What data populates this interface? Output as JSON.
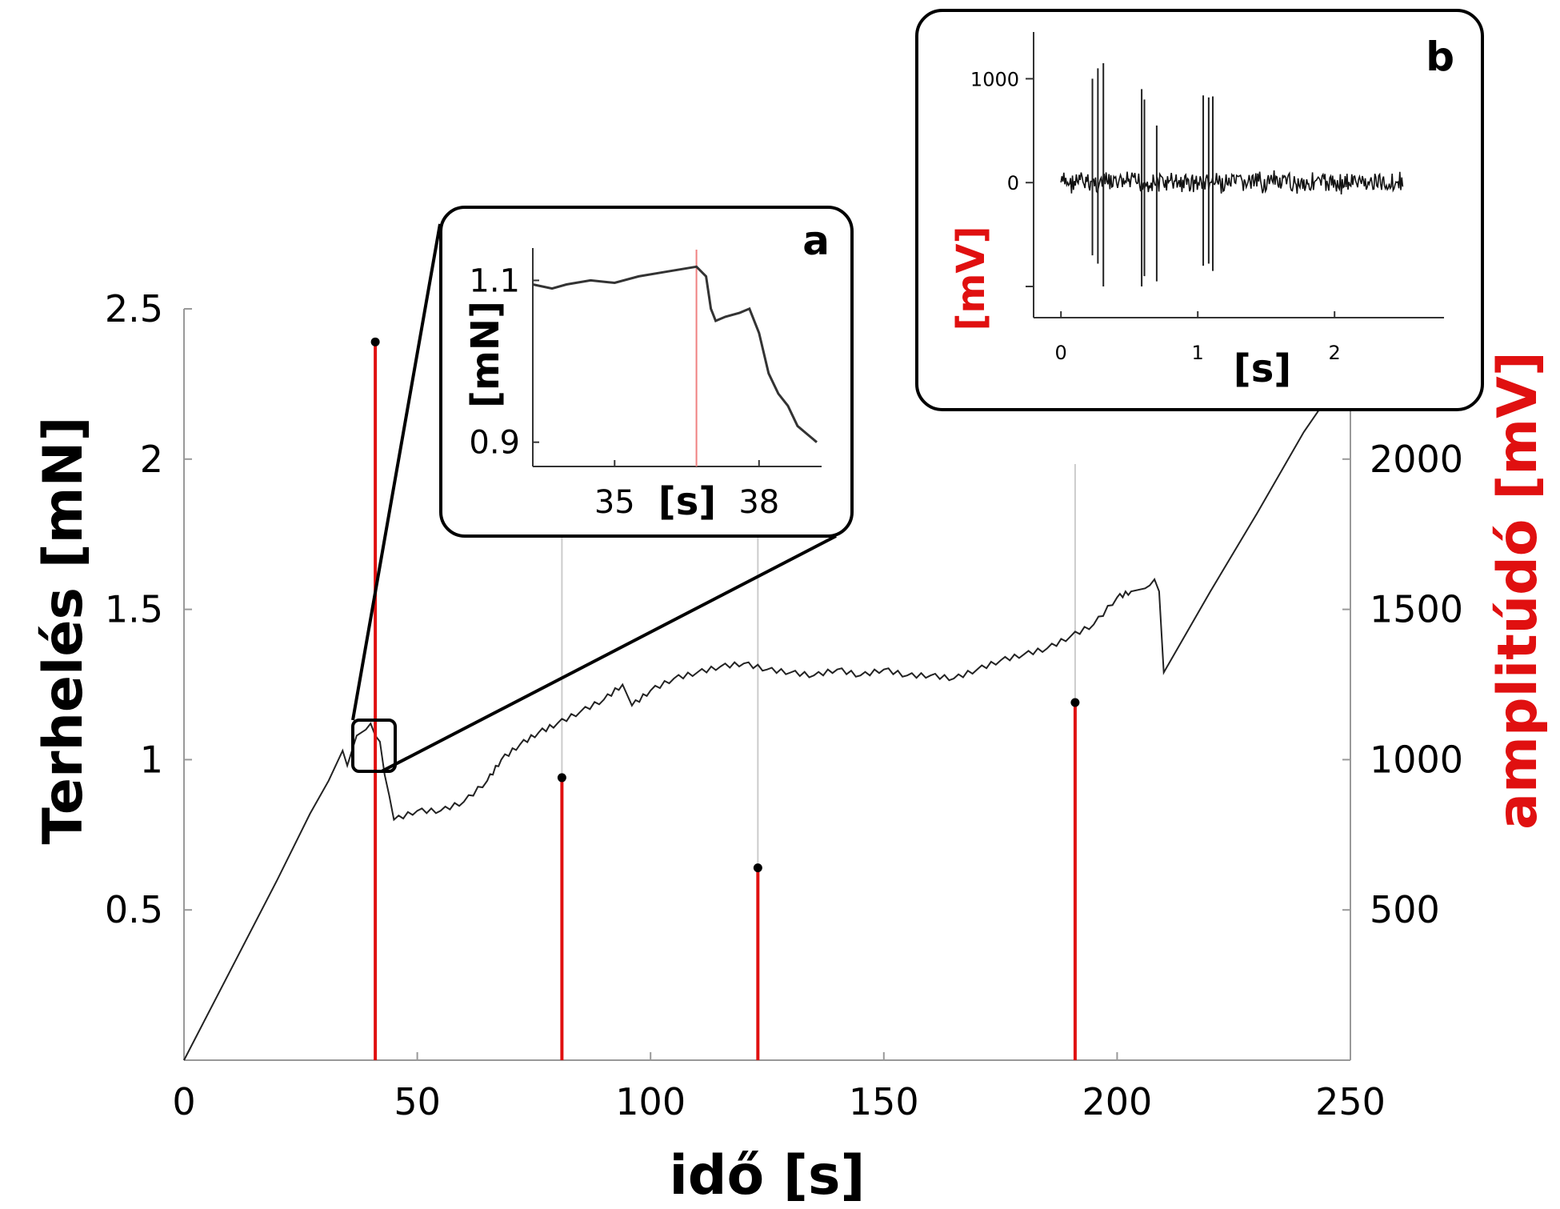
{
  "chart_data": [
    {
      "id": "main",
      "type": "line",
      "xlabel": "idő [s]",
      "ylabel_left": "Terhelés [mN]",
      "ylabel_right": "amplitúdó [mV]",
      "xlim": [
        0,
        250
      ],
      "ylim_left": [
        0,
        2.5
      ],
      "ylim_right": [
        0,
        2500
      ],
      "x_ticks": [
        0,
        50,
        100,
        150,
        200,
        250
      ],
      "y_ticks_left": [
        0.5,
        1,
        1.5,
        2,
        2.5
      ],
      "y_ticks_right": [
        500,
        1000,
        1500,
        2000
      ],
      "grid": false,
      "colors": {
        "load": "#222222",
        "stem": "#e01010",
        "marker": "#000000",
        "guide": "#cccccc"
      },
      "series": [
        {
          "axis": "left",
          "style": "line",
          "x": [
            0,
            10,
            20,
            27,
            31,
            34,
            35,
            37,
            39,
            40,
            41,
            42,
            43,
            44,
            45,
            50,
            55,
            60,
            65,
            68,
            72,
            76,
            80,
            85,
            90,
            94,
            96,
            100,
            105,
            110,
            115,
            120,
            125,
            130,
            135,
            140,
            145,
            150,
            155,
            160,
            165,
            170,
            175,
            180,
            185,
            190,
            195,
            200,
            203,
            206,
            207,
            208,
            209,
            210,
            220,
            230,
            240,
            248
          ],
          "y": [
            0,
            0.3,
            0.6,
            0.82,
            0.93,
            1.03,
            0.98,
            1.08,
            1.1,
            1.12,
            1.08,
            1.06,
            0.95,
            0.88,
            0.8,
            0.83,
            0.83,
            0.86,
            0.93,
            1.0,
            1.05,
            1.09,
            1.12,
            1.16,
            1.2,
            1.25,
            1.18,
            1.23,
            1.27,
            1.29,
            1.31,
            1.32,
            1.3,
            1.29,
            1.28,
            1.3,
            1.28,
            1.3,
            1.28,
            1.28,
            1.27,
            1.3,
            1.33,
            1.35,
            1.37,
            1.41,
            1.45,
            1.54,
            1.56,
            1.57,
            1.58,
            1.6,
            1.56,
            1.29,
            1.56,
            1.82,
            2.09,
            2.27
          ]
        },
        {
          "axis": "right",
          "style": "stem",
          "x": [
            41,
            81,
            123,
            191
          ],
          "y": [
            2390,
            940,
            640,
            1190
          ]
        }
      ]
    },
    {
      "id": "inset-a",
      "panel_label": "a",
      "type": "line",
      "xlabel": "[s]",
      "ylabel": "[mN]",
      "xlim": [
        33.3,
        39.3
      ],
      "ylim": [
        0.87,
        1.14
      ],
      "x_ticks": [
        35,
        38
      ],
      "y_ticks": [
        0.9,
        1.1
      ],
      "marker_x": 36.7,
      "series": [
        {
          "x": [
            33.3,
            33.7,
            34.0,
            34.5,
            35.0,
            35.5,
            36.0,
            36.5,
            36.7,
            36.9,
            37.0,
            37.1,
            37.3,
            37.6,
            37.8,
            38.0,
            38.2,
            38.4,
            38.6,
            38.8,
            39.0,
            39.2
          ],
          "y": [
            1.095,
            1.09,
            1.095,
            1.1,
            1.097,
            1.105,
            1.11,
            1.115,
            1.117,
            1.105,
            1.065,
            1.05,
            1.055,
            1.06,
            1.065,
            1.035,
            0.985,
            0.96,
            0.945,
            0.92,
            0.91,
            0.9
          ]
        }
      ]
    },
    {
      "id": "inset-b",
      "panel_label": "b",
      "type": "line",
      "xlabel": "[s]",
      "ylabel": "[mV]",
      "xlim": [
        -0.2,
        2.8
      ],
      "ylim": [
        -1300,
        1450
      ],
      "x_ticks": [
        0,
        1,
        2
      ],
      "y_ticks": [
        0,
        1000
      ],
      "noise_band": {
        "x": [
          0,
          2.5
        ],
        "amplitude": 120
      },
      "spikes": [
        {
          "x": 0.23,
          "y": [
            -700,
            1000
          ]
        },
        {
          "x": 0.27,
          "y": [
            -780,
            1100
          ]
        },
        {
          "x": 0.31,
          "y": [
            -1000,
            1150
          ]
        },
        {
          "x": 0.59,
          "y": [
            -1000,
            900
          ]
        },
        {
          "x": 0.61,
          "y": [
            -900,
            800
          ]
        },
        {
          "x": 0.7,
          "y": [
            -950,
            550
          ]
        },
        {
          "x": 1.04,
          "y": [
            -800,
            840
          ]
        },
        {
          "x": 1.08,
          "y": [
            -780,
            820
          ]
        },
        {
          "x": 1.11,
          "y": [
            -850,
            830
          ]
        }
      ]
    }
  ]
}
